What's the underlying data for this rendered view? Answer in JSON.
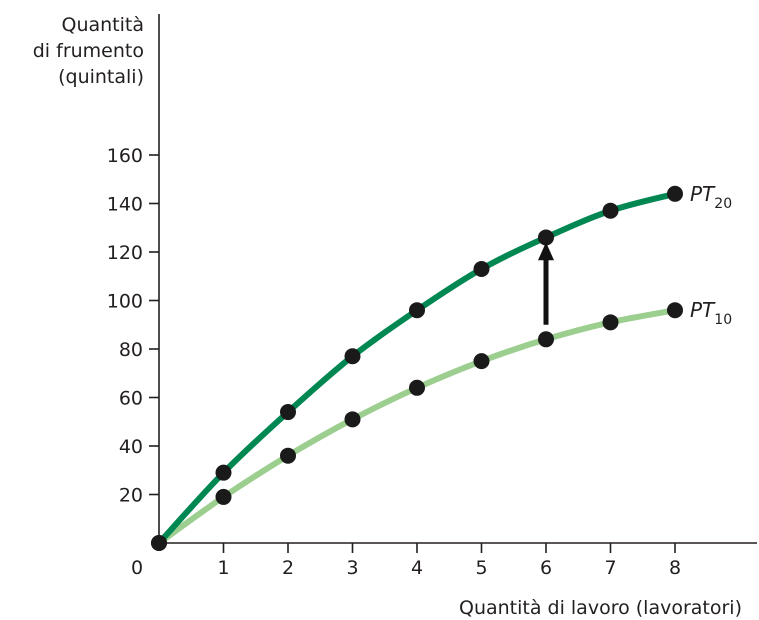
{
  "chart_data": {
    "type": "line",
    "title": "",
    "xlabel": "Quantità di lavoro (lavoratori)",
    "ylabel": [
      "Quantità",
      "di frumento",
      "(quintali)"
    ],
    "x": [
      0,
      1,
      2,
      3,
      4,
      5,
      6,
      7,
      8
    ],
    "xticks": [
      "1",
      "2",
      "3",
      "4",
      "5",
      "6",
      "7",
      "8"
    ],
    "origin_label": "0",
    "yticks": [
      "20",
      "40",
      "60",
      "80",
      "100",
      "120",
      "140",
      "160"
    ],
    "xlim": [
      0,
      9.4
    ],
    "ylim": [
      0,
      160
    ],
    "grid": false,
    "legend": "none",
    "series": [
      {
        "name": "PT",
        "subscript": "20",
        "values": [
          0,
          29,
          54,
          77,
          96,
          113,
          126,
          137,
          144
        ],
        "color": "#008752"
      },
      {
        "name": "PT",
        "subscript": "10",
        "values": [
          0,
          19,
          36,
          51,
          64,
          75,
          84,
          91,
          96
        ],
        "color": "#9ccf8f"
      }
    ],
    "annotation": {
      "type": "arrow",
      "x": 6,
      "from": 90,
      "to": 124,
      "color": "#111111"
    }
  }
}
